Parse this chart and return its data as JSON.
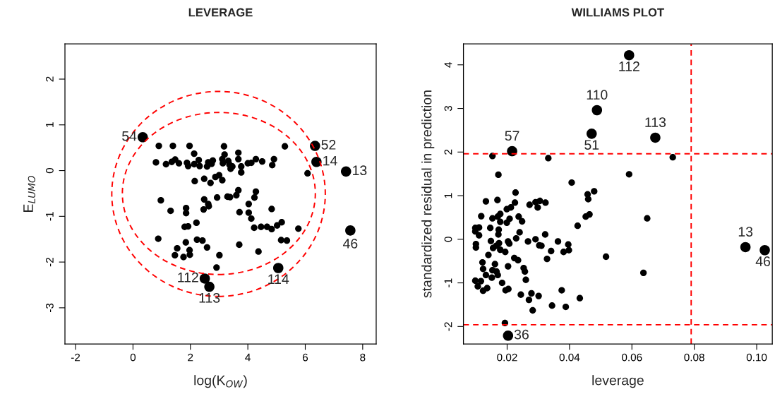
{
  "chart_data": [
    {
      "type": "scatter",
      "title": "LEVERAGE",
      "xlabel": "log(K$_{OW}$)",
      "ylabel": "E$_{LUMO}$",
      "xlim": [
        -2.37,
        8.47
      ],
      "ylim": [
        -3.79,
        2.77
      ],
      "xticks": [
        -2,
        0,
        2,
        4,
        6,
        8
      ],
      "yticks": [
        -3,
        -2,
        -1,
        0,
        1,
        2
      ],
      "series": [
        {
          "color": "#000000",
          "x": [
            0.9,
            1.39,
            1.97,
            3.17,
            5.29,
            2.13,
            3.19,
            3.67,
            3.67,
            0.8,
            1.15,
            1.35,
            1.47,
            1.6,
            1.88,
            1.92,
            2.13,
            2.29,
            2.32,
            2.62,
            2.58,
            2.78,
            2.74,
            3.11,
            3.13,
            3.32,
            3.36,
            3.4,
            3.46,
            3.77,
            3.77,
            4.0,
            4.12,
            4.28,
            4.5,
            4.91,
            4.85,
            6.08,
            2.15,
            2.48,
            2.7,
            2.87,
            3.0,
            3.11,
            0.97,
            1.31,
            1.85,
            1.85,
            2.48,
            2.62,
            2.64,
            2.46,
            2.93,
            3.29,
            3.38,
            3.67,
            3.6,
            4.28,
            4.23,
            4.03,
            3.71,
            4.03,
            4.12,
            4.83,
            2.21,
            1.8,
            1.92,
            4.22,
            4.46,
            4.67,
            4.83,
            5.02,
            5.18,
            5.76,
            0.88,
            2.23,
            2.42,
            1.84,
            2.58,
            3.7,
            1.54,
            1.97,
            1.46,
            1.76,
            1.98,
            3.01,
            4.37,
            5.16,
            5.36,
            2.91
          ],
          "values": [
            0.54,
            0.54,
            0.54,
            0.53,
            0.53,
            0.37,
            0.35,
            0.39,
            0.25,
            0.18,
            0.14,
            0.19,
            0.24,
            0.16,
            0.17,
            0.1,
            0.14,
            0.23,
            0.1,
            0.18,
            0.09,
            0.22,
            0.15,
            0.25,
            0.16,
            0.21,
            0.13,
            0.04,
            0.09,
            0.09,
            -0.04,
            0.16,
            0.17,
            0.25,
            0.2,
            0.25,
            0.12,
            -0.06,
            -0.23,
            -0.18,
            -0.27,
            -0.14,
            -0.1,
            -0.21,
            -0.65,
            -0.88,
            -0.82,
            -0.93,
            -0.63,
            -0.73,
            -0.78,
            -0.85,
            -0.59,
            -0.57,
            -0.58,
            -0.43,
            -0.54,
            -0.46,
            -0.59,
            -0.73,
            -0.91,
            -0.92,
            -1.05,
            -0.84,
            -1.14,
            -1.23,
            -1.22,
            -1.25,
            -1.23,
            -1.23,
            -1.28,
            -1.2,
            -1.13,
            -1.27,
            -1.49,
            -1.51,
            -1.53,
            -1.57,
            -1.68,
            -1.62,
            -1.7,
            -1.74,
            -1.85,
            -1.89,
            -1.84,
            -1.85,
            -1.77,
            -1.52,
            -1.53,
            -2.12
          ]
        },
        {
          "color": "#000000",
          "x": [
            0.34,
            6.34,
            6.39,
            7.42,
            7.57,
            2.5,
            2.66,
            5.06
          ],
          "values": [
            0.73,
            0.54,
            0.19,
            -0.02,
            -1.31,
            -2.36,
            -2.54,
            -2.13
          ]
        }
      ],
      "annotations": [
        {
          "text": "54",
          "x": 0.34,
          "y": 0.73
        },
        {
          "text": "52",
          "x": 6.34,
          "y": 0.54
        },
        {
          "text": "14",
          "x": 6.39,
          "y": 0.19
        },
        {
          "text": "13",
          "x": 7.42,
          "y": -0.02
        },
        {
          "text": "46",
          "x": 7.57,
          "y": -1.31
        },
        {
          "text": "112",
          "x": 2.5,
          "y": -2.36
        },
        {
          "text": "113",
          "x": 2.66,
          "y": -2.54
        },
        {
          "text": "114",
          "x": 5.06,
          "y": -2.13
        }
      ]
    },
    {
      "type": "scatter",
      "title": "WILLIAMS PLOT",
      "xlabel": "leverage",
      "ylabel": "standardized residual in prediction",
      "xlim": [
        0.006,
        0.105
      ],
      "ylim": [
        -2.4,
        4.48
      ],
      "xticks": [
        0.02,
        0.04,
        0.06,
        0.08,
        {
          "value": 0.1,
          "label": "0.10"
        }
      ],
      "yticks": [
        -2,
        -1,
        0,
        1,
        2,
        3,
        4
      ],
      "series": [
        {
          "color": "#000000",
          "x": [
            0.0153,
            0.0332,
            0.0731,
            0.0172,
            0.0591,
            0.0407,
            0.0479,
            0.0458,
            0.046,
            0.0227,
            0.0649,
            0.0464,
            0.0452,
            0.0426,
            0.0132,
            0.0169,
            0.0225,
            0.0272,
            0.0291,
            0.0305,
            0.0323,
            0.0298,
            0.0199,
            0.0212,
            0.0178,
            0.017,
            0.0117,
            0.0153,
            0.0178,
            0.0199,
            0.0208,
            0.0237,
            0.0248,
            0.0098,
            0.011,
            0.011,
            0.0098,
            0.0146,
            0.0173,
            0.0172,
            0.024,
            0.0229,
            0.0322,
            0.01,
            0.01,
            0.0148,
            0.0174,
            0.0155,
            0.0165,
            0.0178,
            0.0194,
            0.0203,
            0.0207,
            0.0267,
            0.0291,
            0.0303,
            0.031,
            0.0363,
            0.0396,
            0.0398,
            0.0381,
            0.0341,
            0.0328,
            0.0517,
            0.014,
            0.0223,
            0.0235,
            0.0203,
            0.0121,
            0.0123,
            0.0161,
            0.0153,
            0.0166,
            0.0253,
            0.0257,
            0.0132,
            0.0151,
            0.017,
            0.026,
            0.0098,
            0.0106,
            0.0116,
            0.0123,
            0.0136,
            0.0184,
            0.0195,
            0.0204,
            0.0244,
            0.0278,
            0.027,
            0.0301,
            0.0375,
            0.0433,
            0.0344,
            0.0388,
            0.0282,
            0.0193,
            0.0637
          ],
          "values": [
            1.91,
            1.86,
            1.88,
            1.48,
            1.49,
            1.3,
            1.1,
            1.03,
            0.92,
            1.07,
            0.48,
            0.57,
            0.52,
            0.31,
            0.87,
            0.9,
            0.84,
            0.79,
            0.85,
            0.88,
            0.84,
            0.73,
            0.69,
            0.73,
            0.58,
            0.52,
            0.53,
            0.48,
            0.4,
            0.38,
            0.47,
            0.52,
            0.41,
            0.26,
            0.27,
            0.09,
            0.18,
            0.26,
            0.22,
            0.11,
            0.16,
            0.02,
            0.11,
            -0.11,
            -0.19,
            -0.04,
            -0.09,
            -0.2,
            -0.15,
            -0.24,
            -0.29,
            -0.05,
            -0.1,
            -0.05,
            0.0,
            -0.14,
            -0.15,
            -0.05,
            -0.12,
            -0.25,
            -0.29,
            -0.27,
            -0.45,
            -0.4,
            -0.36,
            -0.43,
            -0.48,
            -0.62,
            -0.53,
            -0.68,
            -0.57,
            -0.71,
            -0.74,
            -0.66,
            -0.74,
            -0.82,
            -0.88,
            -0.82,
            -0.93,
            -0.95,
            -1.08,
            -0.96,
            -1.18,
            -1.12,
            -1.0,
            -1.17,
            -1.14,
            -1.27,
            -1.24,
            -1.39,
            -1.3,
            -1.17,
            -1.35,
            -1.52,
            -1.55,
            -1.63,
            -1.92,
            -0.77
          ]
        },
        {
          "color": "#000000",
          "x": [
            0.0591,
            0.0488,
            0.0471,
            0.0675,
            0.0216,
            0.0203,
            0.0964,
            0.1026
          ],
          "values": [
            4.22,
            2.96,
            2.42,
            2.33,
            2.02,
            -2.21,
            -0.18,
            -0.25
          ]
        }
      ],
      "ref_lines": [
        {
          "axis": "y",
          "value": 1.96,
          "color": "#ff0000",
          "line_style": "dashed"
        },
        {
          "axis": "y",
          "value": -1.96,
          "color": "#ff0000",
          "line_style": "dashed"
        },
        {
          "axis": "x",
          "value": 0.079,
          "color": "#ff0000",
          "line_style": "dashed"
        }
      ],
      "annotations": [
        {
          "text": "112",
          "x": 0.0591,
          "y": 4.22
        },
        {
          "text": "110",
          "x": 0.0488,
          "y": 2.96
        },
        {
          "text": "51",
          "x": 0.0471,
          "y": 2.42
        },
        {
          "text": "113",
          "x": 0.0675,
          "y": 2.33
        },
        {
          "text": "57",
          "x": 0.0216,
          "y": 2.02
        },
        {
          "text": "36",
          "x": 0.0203,
          "y": -2.21
        },
        {
          "text": "13",
          "x": 0.0964,
          "y": -0.18
        },
        {
          "text": "46",
          "x": 0.1026,
          "y": -0.25
        }
      ]
    }
  ]
}
